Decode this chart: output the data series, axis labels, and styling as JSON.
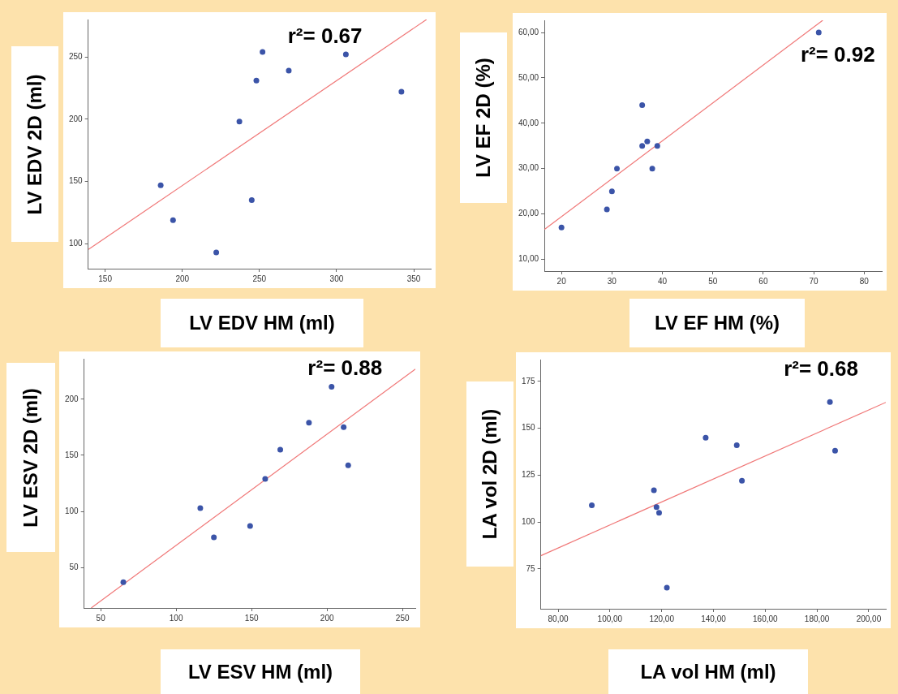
{
  "chart_data": [
    {
      "type": "scatter",
      "xlabel": "LV EDV HM (ml)",
      "ylabel": "LV EDV 2D (ml)",
      "annotations": [
        "r²= 0.67"
      ],
      "xlim": [
        139,
        361
      ],
      "ylim": [
        80,
        280
      ],
      "xticks": [
        150,
        200,
        250,
        300,
        350
      ],
      "yticks": [
        100,
        150,
        200,
        250
      ],
      "series": [
        {
          "type": "scatter",
          "color": "#3b54a8",
          "marker": "circle",
          "x": [
            186,
            194,
            222,
            237,
            245,
            248,
            252,
            269,
            306,
            342
          ],
          "values": [
            147,
            119,
            93,
            198,
            135,
            231,
            254,
            239,
            252,
            222
          ]
        },
        {
          "type": "line",
          "color": "#f07878",
          "x": [
            139.2,
            358.3
          ],
          "values": [
            95.5,
            280
          ]
        }
      ]
    },
    {
      "type": "scatter",
      "xlabel": "LV EF HM (%)",
      "ylabel": "LV EF 2D (%)",
      "annotations": [
        "r²= 0.92"
      ],
      "xlim": [
        16.6,
        83.5
      ],
      "ylim": [
        7.4,
        62.7
      ],
      "xticks": [
        20,
        30,
        40,
        50,
        60,
        70,
        80
      ],
      "yticks": [
        {
          "value": 10,
          "label": "10,00"
        },
        {
          "value": 20,
          "label": "20,00"
        },
        {
          "value": 30,
          "label": "30,00"
        },
        {
          "value": 40,
          "label": "40,00"
        },
        {
          "value": 50,
          "label": "50,00"
        },
        {
          "value": 60,
          "label": "60,00"
        }
      ],
      "series": [
        {
          "type": "scatter",
          "color": "#3b54a8",
          "marker": "circle",
          "x": [
            20,
            29,
            30,
            31,
            36,
            36,
            37,
            38,
            39,
            71
          ],
          "values": [
            17,
            21,
            25,
            30,
            44,
            35,
            36,
            30,
            35,
            60
          ]
        },
        {
          "type": "line",
          "color": "#f07878",
          "x": [
            16.65,
            71.8
          ],
          "values": [
            16.6,
            62.7
          ]
        }
      ]
    },
    {
      "type": "scatter",
      "xlabel": "LV ESV HM (ml)",
      "ylabel": "LV ESV 2D (ml)",
      "annotations": [
        "r²= 0.88"
      ],
      "xlim": [
        39,
        258.5
      ],
      "ylim": [
        14,
        236
      ],
      "xticks": [
        50,
        100,
        150,
        200,
        250
      ],
      "yticks": [
        50,
        100,
        150,
        200
      ],
      "series": [
        {
          "type": "scatter",
          "color": "#3b54a8",
          "marker": "circle",
          "x": [
            65,
            116,
            125,
            149,
            159,
            169,
            188,
            203,
            211,
            214
          ],
          "values": [
            37,
            103,
            77,
            87,
            129,
            155,
            179,
            211,
            175,
            141
          ]
        },
        {
          "type": "line",
          "color": "#f07878",
          "x": [
            43.7,
            258.5
          ],
          "values": [
            14,
            226.8
          ]
        }
      ]
    },
    {
      "type": "scatter",
      "xlabel": "LA vol HM (ml)",
      "ylabel": "LA vol 2D (ml)",
      "annotations": [
        "r²= 0.68"
      ],
      "xlim": [
        73.3,
        206.6
      ],
      "ylim": [
        53.8,
        186.6
      ],
      "xticks": [
        {
          "value": 80,
          "label": "80,00"
        },
        {
          "value": 100,
          "label": "100,00"
        },
        {
          "value": 120,
          "label": "120,00"
        },
        {
          "value": 140,
          "label": "140,00"
        },
        {
          "value": 160,
          "label": "160,00"
        },
        {
          "value": 180,
          "label": "180,00"
        },
        {
          "value": 200,
          "label": "200,00"
        }
      ],
      "yticks": [
        75,
        100,
        125,
        150,
        175
      ],
      "series": [
        {
          "type": "scatter",
          "color": "#3b54a8",
          "marker": "circle",
          "x": [
            93,
            117,
            118,
            119,
            122,
            137,
            149,
            151,
            185,
            187
          ],
          "values": [
            109,
            117,
            108,
            105,
            65,
            145,
            141,
            122,
            164,
            138
          ]
        },
        {
          "type": "line",
          "color": "#f07878",
          "x": [
            73.3,
            206.6
          ],
          "values": [
            82.1,
            163.8
          ]
        }
      ]
    }
  ]
}
